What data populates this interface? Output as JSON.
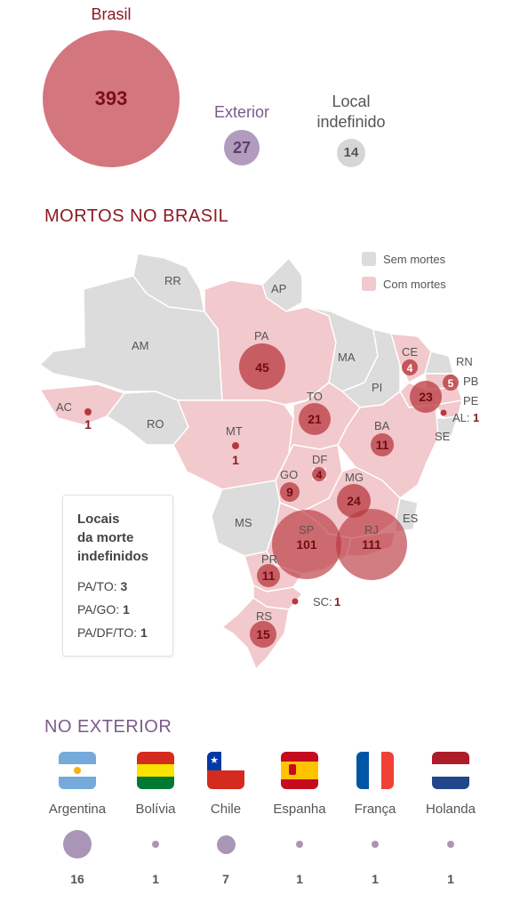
{
  "colors": {
    "accent_red": "#8b1a22",
    "brasil_circle": "#d4767e",
    "exterior_purple": "#7a5c8a",
    "undefined_gray": "#d0d0d0",
    "map_gray": "#dcdcdc",
    "map_pink": "#f2c9cc",
    "bubble_red": "#b8383f"
  },
  "summary": {
    "brasil": {
      "label": "Brasil",
      "value": "393"
    },
    "exterior": {
      "label": "Exterior",
      "value": "27"
    },
    "indefinido": {
      "label_line1": "Local",
      "label_line2": "indefinido",
      "value": "14"
    }
  },
  "section_brasil": {
    "title": "MORTOS NO BRASIL"
  },
  "legend": {
    "sem": "Sem mortes",
    "com": "Com mortes"
  },
  "states_no_deaths": [
    "RR",
    "AP",
    "AM",
    "RO",
    "MA",
    "PI",
    "MS",
    "ES",
    "RN",
    "SE"
  ],
  "bubbles": [
    {
      "uf": "PA",
      "value": "45"
    },
    {
      "uf": "CE",
      "value": "4"
    },
    {
      "uf": "PB",
      "value": "5"
    },
    {
      "uf": "PE",
      "value": "23"
    },
    {
      "uf": "TO",
      "value": "21"
    },
    {
      "uf": "BA",
      "value": "11"
    },
    {
      "uf": "AC",
      "value": "1"
    },
    {
      "uf": "MT",
      "value": "1"
    },
    {
      "uf": "GO",
      "value": "9"
    },
    {
      "uf": "DF",
      "value": "4"
    },
    {
      "uf": "MG",
      "value": "24"
    },
    {
      "uf": "SP",
      "value": "101"
    },
    {
      "uf": "RJ",
      "value": "111"
    },
    {
      "uf": "PR",
      "value": "11"
    },
    {
      "uf": "RS",
      "value": "15"
    }
  ],
  "side_labels": {
    "al": {
      "uf": "AL:",
      "value": "1"
    },
    "sc": {
      "uf": "SC:",
      "value": "1"
    }
  },
  "undefined_box": {
    "title_line1": "Locais",
    "title_line2": "da morte",
    "title_line3": "indefinidos",
    "rows": [
      {
        "label": "PA/TO:",
        "value": "3"
      },
      {
        "label": "PA/GO:",
        "value": "1"
      },
      {
        "label": "PA/DF/TO:",
        "value": "1"
      }
    ]
  },
  "section_exterior": {
    "title": "NO EXTERIOR"
  },
  "countries": [
    {
      "name": "Argentina",
      "value": "16"
    },
    {
      "name": "Bolívia",
      "value": "1"
    },
    {
      "name": "Chile",
      "value": "7"
    },
    {
      "name": "Espanha",
      "value": "1"
    },
    {
      "name": "França",
      "value": "1"
    },
    {
      "name": "Holanda",
      "value": "1"
    }
  ]
}
